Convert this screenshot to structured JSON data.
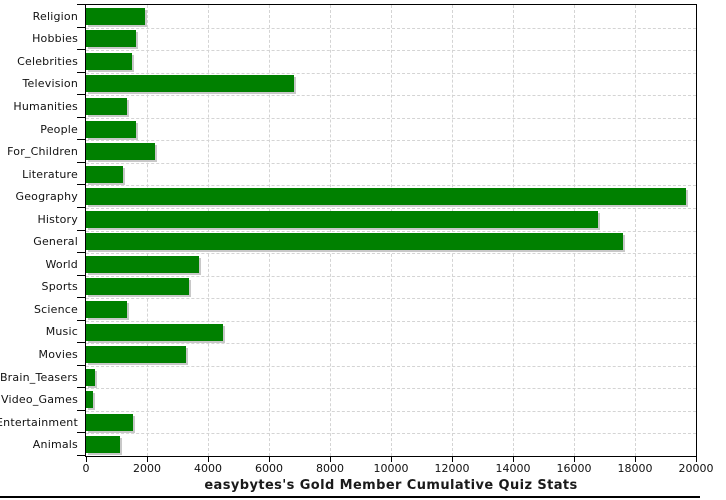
{
  "chart_data": {
    "type": "bar",
    "orientation": "horizontal",
    "title": "easybytes's Gold Member Cumulative Quiz Stats",
    "categories": [
      "Religion",
      "Hobbies",
      "Celebrities",
      "Television",
      "Humanities",
      "People",
      "For_Children",
      "Literature",
      "Geography",
      "History",
      "General",
      "World",
      "Sports",
      "Science",
      "Music",
      "Movies",
      "Brain_Teasers",
      "Video_Games",
      "Entertainment",
      "Animals"
    ],
    "values": [
      1950,
      1640,
      1500,
      6820,
      1340,
      1640,
      2260,
      1210,
      19670,
      16790,
      17610,
      3700,
      3380,
      1340,
      4490,
      3280,
      300,
      220,
      1540,
      1130
    ],
    "xlabel": "",
    "ylabel": "",
    "xlim": [
      0,
      20000
    ],
    "x_ticks": [
      0,
      2000,
      4000,
      6000,
      8000,
      10000,
      12000,
      14000,
      16000,
      18000,
      20000
    ],
    "grid": "dashed-both",
    "legend": "none",
    "bar_color": "#008000",
    "bar_shadow_color": "#c8c8c8",
    "gridline_color": "#d4d4d4",
    "axis_color": "#000000"
  }
}
